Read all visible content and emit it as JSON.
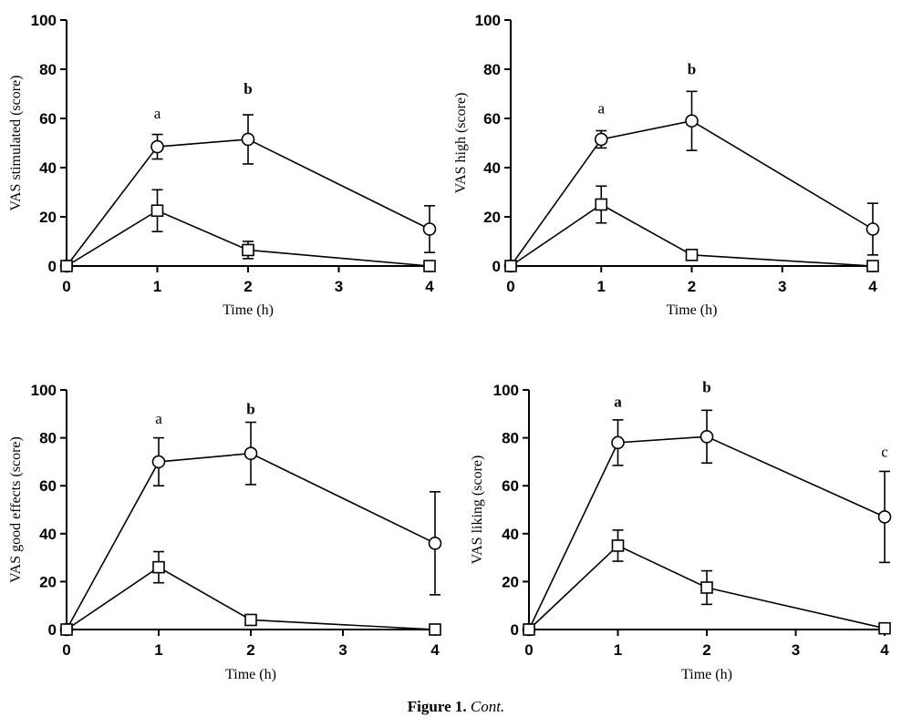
{
  "caption": {
    "label": "Figure 1.",
    "text": "Cont."
  },
  "chart_data": [
    {
      "type": "line",
      "ylabel": "VAS stimulated  (score)",
      "xlabel": "Time (h)",
      "xticks": [
        0,
        1,
        2,
        3,
        4
      ],
      "yticks": [
        0,
        20,
        40,
        60,
        80,
        100
      ],
      "xlim": [
        0,
        4
      ],
      "ylim": [
        0,
        100
      ],
      "series": [
        {
          "marker": "circle",
          "x": [
            0,
            1,
            2,
            4
          ],
          "y": [
            0,
            48.5,
            51.5,
            15
          ],
          "err": [
            0,
            5,
            10,
            9.5
          ]
        },
        {
          "marker": "square",
          "x": [
            0,
            1,
            2,
            4
          ],
          "y": [
            0,
            22.5,
            6.5,
            0
          ],
          "err": [
            0,
            8.5,
            3.5,
            0
          ]
        }
      ],
      "annotations": [
        {
          "x": 1,
          "y": 60,
          "text": "a"
        },
        {
          "x": 2,
          "y": 70,
          "text": "b"
        }
      ]
    },
    {
      "type": "line",
      "ylabel": "VAS high (score)",
      "xlabel": "Time (h)",
      "xticks": [
        0,
        1,
        2,
        3,
        4
      ],
      "yticks": [
        0,
        20,
        40,
        60,
        80,
        100
      ],
      "xlim": [
        0,
        4
      ],
      "ylim": [
        0,
        100
      ],
      "series": [
        {
          "marker": "circle",
          "x": [
            0,
            1,
            2,
            4
          ],
          "y": [
            0,
            51.5,
            59,
            15
          ],
          "err": [
            0,
            3.5,
            12,
            10.5
          ]
        },
        {
          "marker": "square",
          "x": [
            0,
            1,
            2,
            4
          ],
          "y": [
            0,
            25,
            4.5,
            0
          ],
          "err": [
            0,
            7.5,
            1,
            0
          ]
        }
      ],
      "annotations": [
        {
          "x": 1,
          "y": 62,
          "text": "a"
        },
        {
          "x": 2,
          "y": 78,
          "text": "b"
        }
      ]
    },
    {
      "type": "line",
      "ylabel": "VAS good effects (score)",
      "xlabel": "Time (h)",
      "xticks": [
        0,
        1,
        2,
        3,
        4
      ],
      "yticks": [
        0,
        20,
        40,
        60,
        80,
        100
      ],
      "xlim": [
        0,
        4
      ],
      "ylim": [
        0,
        100
      ],
      "series": [
        {
          "marker": "circle",
          "x": [
            0,
            1,
            2,
            4
          ],
          "y": [
            0,
            70,
            73.5,
            36
          ],
          "err": [
            0,
            10,
            13,
            21.5
          ]
        },
        {
          "marker": "square",
          "x": [
            0,
            1,
            2,
            4
          ],
          "y": [
            0,
            26,
            4,
            0
          ],
          "err": [
            0,
            6.5,
            1,
            0
          ]
        }
      ],
      "annotations": [
        {
          "x": 1,
          "y": 86,
          "text": "a"
        },
        {
          "x": 2,
          "y": 90,
          "text": "b"
        }
      ]
    },
    {
      "type": "line",
      "ylabel": "VAS liking (score)",
      "xlabel": "Time (h)",
      "xticks": [
        0,
        1,
        2,
        3,
        4
      ],
      "yticks": [
        0,
        20,
        40,
        60,
        80,
        100
      ],
      "xlim": [
        0,
        4
      ],
      "ylim": [
        0,
        100
      ],
      "series": [
        {
          "marker": "circle",
          "x": [
            0,
            1,
            2,
            4
          ],
          "y": [
            0,
            78,
            80.5,
            47
          ],
          "err": [
            0,
            9.5,
            11,
            19
          ]
        },
        {
          "marker": "square",
          "x": [
            0,
            1,
            2,
            4
          ],
          "y": [
            0,
            35,
            17.5,
            0.5
          ],
          "err": [
            0,
            6.5,
            7,
            0
          ]
        }
      ],
      "annotations": [
        {
          "x": 1,
          "y": 93,
          "text": "a"
        },
        {
          "x": 2,
          "y": 99,
          "text": "b"
        },
        {
          "x": 4,
          "y": 72,
          "text": "c"
        }
      ]
    }
  ]
}
